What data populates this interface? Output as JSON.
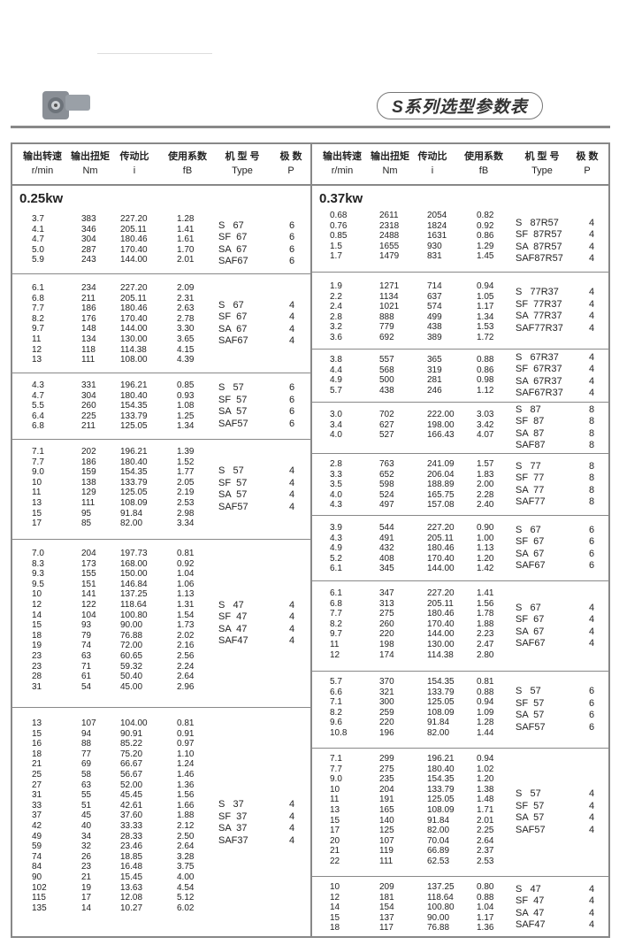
{
  "header": {
    "title": "S系列选型参数表",
    "logo_icon": "gear-reducer-image"
  },
  "columns": [
    {
      "zh": "输出转速",
      "en": "r/min"
    },
    {
      "zh": "输出扭矩",
      "en": "Nm"
    },
    {
      "zh": "传动比",
      "en": "i"
    },
    {
      "zh": "使用系数",
      "en": "fB"
    },
    {
      "zh": "机 型 号",
      "en": "Type"
    },
    {
      "zh": "极  数",
      "en": "P"
    }
  ],
  "left": {
    "power": "0.25kw",
    "groups": [
      {
        "rows": [
          [
            "3.7",
            "383",
            "227.20",
            "1.28"
          ],
          [
            "4.1",
            "346",
            "205.11",
            "1.41"
          ],
          [
            "4.7",
            "304",
            "180.46",
            "1.61"
          ],
          [
            "5.0",
            "287",
            "170.40",
            "1.70"
          ],
          [
            "5.9",
            "243",
            "144.00",
            "2.01"
          ]
        ],
        "types": [
          [
            "S   67",
            "6"
          ],
          [
            "SF  67",
            "6"
          ],
          [
            "SA  67",
            "6"
          ],
          [
            "SAF67",
            "6"
          ]
        ]
      },
      {
        "rows": [
          [
            "6.1",
            "234",
            "227.20",
            "2.09"
          ],
          [
            "6.8",
            "211",
            "205.11",
            "2.31"
          ],
          [
            "7.7",
            "186",
            "180.46",
            "2.63"
          ],
          [
            "8.2",
            "176",
            "170.40",
            "2.78"
          ],
          [
            "9.7",
            "148",
            "144.00",
            "3.30"
          ],
          [
            "11",
            "134",
            "130.00",
            "3.65"
          ],
          [
            "12",
            "118",
            "114.38",
            "4.15"
          ],
          [
            "13",
            "111",
            "108.00",
            "4.39"
          ]
        ],
        "types": [
          [
            "S   67",
            "4"
          ],
          [
            "SF  67",
            "4"
          ],
          [
            "SA  67",
            "4"
          ],
          [
            "SAF67",
            "4"
          ]
        ]
      },
      {
        "rows": [
          [
            "4.3",
            "331",
            "196.21",
            "0.85"
          ],
          [
            "4.7",
            "304",
            "180.40",
            "0.93"
          ],
          [
            "5.5",
            "260",
            "154.35",
            "1.08"
          ],
          [
            "6.4",
            "225",
            "133.79",
            "1.25"
          ],
          [
            "6.8",
            "211",
            "125.05",
            "1.34"
          ]
        ],
        "types": [
          [
            "S   57",
            "6"
          ],
          [
            "SF  57",
            "6"
          ],
          [
            "SA  57",
            "6"
          ],
          [
            "SAF57",
            "6"
          ]
        ]
      },
      {
        "rows": [
          [
            "7.1",
            "202",
            "196.21",
            "1.39"
          ],
          [
            "7.7",
            "186",
            "180.40",
            "1.52"
          ],
          [
            "9.0",
            "159",
            "154.35",
            "1.77"
          ],
          [
            "10",
            "138",
            "133.79",
            "2.05"
          ],
          [
            "11",
            "129",
            "125.05",
            "2.19"
          ],
          [
            "13",
            "111",
            "108.09",
            "2.53"
          ],
          [
            "15",
            "95",
            "91.84",
            "2.98"
          ],
          [
            "17",
            "85",
            "82.00",
            "3.34"
          ]
        ],
        "types": [
          [
            "S   57",
            "4"
          ],
          [
            "SF  57",
            "4"
          ],
          [
            "SA  57",
            "4"
          ],
          [
            "SAF57",
            "4"
          ]
        ]
      },
      {
        "rows": [
          [
            "7.0",
            "204",
            "197.73",
            "0.81"
          ],
          [
            "8.3",
            "173",
            "168.00",
            "0.92"
          ],
          [
            "9.3",
            "155",
            "150.00",
            "1.04"
          ],
          [
            "9.5",
            "151",
            "146.84",
            "1.06"
          ],
          [
            "10",
            "141",
            "137.25",
            "1.13"
          ],
          [
            "12",
            "122",
            "118.64",
            "1.31"
          ],
          [
            "14",
            "104",
            "100.80",
            "1.54"
          ],
          [
            "15",
            "93",
            "90.00",
            "1.73"
          ],
          [
            "18",
            "79",
            "76.88",
            "2.02"
          ],
          [
            "19",
            "74",
            "72.00",
            "2.16"
          ],
          [
            "23",
            "63",
            "60.65",
            "2.56"
          ],
          [
            "23",
            "71",
            "59.32",
            "2.24"
          ],
          [
            "28",
            "61",
            "50.40",
            "2.64"
          ],
          [
            "31",
            "54",
            "45.00",
            "2.96"
          ]
        ],
        "types": [
          [
            "S   47",
            "4"
          ],
          [
            "SF  47",
            "4"
          ],
          [
            "SA  47",
            "4"
          ],
          [
            "SAF47",
            "4"
          ]
        ]
      },
      {
        "rows": [
          [
            "13",
            "107",
            "104.00",
            "0.81"
          ],
          [
            "15",
            "94",
            "90.91",
            "0.91"
          ],
          [
            "16",
            "88",
            "85.22",
            "0.97"
          ],
          [
            "18",
            "77",
            "75.20",
            "1.10"
          ],
          [
            "21",
            "69",
            "66.67",
            "1.24"
          ],
          [
            "25",
            "58",
            "56.67",
            "1.46"
          ],
          [
            "27",
            "63",
            "52.00",
            "1.36"
          ],
          [
            "31",
            "55",
            "45.45",
            "1.56"
          ],
          [
            "33",
            "51",
            "42.61",
            "1.66"
          ],
          [
            "37",
            "45",
            "37.60",
            "1.88"
          ],
          [
            "42",
            "40",
            "33.33",
            "2.12"
          ],
          [
            "49",
            "34",
            "28.33",
            "2.50"
          ],
          [
            "59",
            "32",
            "23.46",
            "2.64"
          ],
          [
            "74",
            "26",
            "18.85",
            "3.28"
          ],
          [
            "84",
            "23",
            "16.48",
            "3.75"
          ],
          [
            "90",
            "21",
            "15.45",
            "4.00"
          ],
          [
            "102",
            "19",
            "13.63",
            "4.54"
          ],
          [
            "115",
            "17",
            "12.08",
            "5.12"
          ],
          [
            "135",
            "14",
            "10.27",
            "6.02"
          ]
        ],
        "types": [
          [
            "S   37",
            "4"
          ],
          [
            "SF  37",
            "4"
          ],
          [
            "SA  37",
            "4"
          ],
          [
            "SAF37",
            "4"
          ]
        ]
      }
    ]
  },
  "right": {
    "power": "0.37kw",
    "groups": [
      {
        "rows": [
          [
            "0.68",
            "2611",
            "2054",
            "0.82"
          ],
          [
            "0.76",
            "2318",
            "1824",
            "0.92"
          ],
          [
            "0.85",
            "2488",
            "1631",
            "0.86"
          ],
          [
            "1.5",
            "1655",
            "930",
            "1.29"
          ],
          [
            "1.7",
            "1479",
            "831",
            "1.45"
          ]
        ],
        "types": [
          [
            "S   87R57",
            "4"
          ],
          [
            "SF  87R57",
            "4"
          ],
          [
            "SA  87R57",
            "4"
          ],
          [
            "SAF87R57",
            "4"
          ]
        ]
      },
      {
        "rows": [
          [
            "1.9",
            "1271",
            "714",
            "0.94"
          ],
          [
            "2.2",
            "1134",
            "637",
            "1.05"
          ],
          [
            "2.4",
            "1021",
            "574",
            "1.17"
          ],
          [
            "2.8",
            "888",
            "499",
            "1.34"
          ],
          [
            "3.2",
            "779",
            "438",
            "1.53"
          ],
          [
            "3.6",
            "692",
            "389",
            "1.72"
          ]
        ],
        "types": [
          [
            "S   77R37",
            "4"
          ],
          [
            "SF  77R37",
            "4"
          ],
          [
            "SA  77R37",
            "4"
          ],
          [
            "SAF77R37",
            "4"
          ]
        ]
      },
      {
        "rows": [
          [
            "3.8",
            "557",
            "365",
            "0.88"
          ],
          [
            "4.4",
            "568",
            "319",
            "0.86"
          ],
          [
            "4.9",
            "500",
            "281",
            "0.98"
          ],
          [
            "5.7",
            "438",
            "246",
            "1.12"
          ]
        ],
        "types": [
          [
            "S   67R37",
            "4"
          ],
          [
            "SF  67R37",
            "4"
          ],
          [
            "SA  67R37",
            "4"
          ],
          [
            "SAF67R37",
            "4"
          ]
        ]
      },
      {
        "rows": [
          [
            "3.0",
            "702",
            "222.00",
            "3.03"
          ],
          [
            "3.4",
            "627",
            "198.00",
            "3.42"
          ],
          [
            "4.0",
            "527",
            "166.43",
            "4.07"
          ]
        ],
        "types": [
          [
            "S   87",
            "8"
          ],
          [
            "SF  87",
            "8"
          ],
          [
            "SA  87",
            "8"
          ],
          [
            "SAF87",
            "8"
          ]
        ]
      },
      {
        "rows": [
          [
            "2.8",
            "763",
            "241.09",
            "1.57"
          ],
          [
            "3.3",
            "652",
            "206.04",
            "1.83"
          ],
          [
            "3.5",
            "598",
            "188.89",
            "2.00"
          ],
          [
            "4.0",
            "524",
            "165.75",
            "2.28"
          ],
          [
            "4.3",
            "497",
            "157.08",
            "2.40"
          ]
        ],
        "types": [
          [
            "S   77",
            "8"
          ],
          [
            "SF  77",
            "8"
          ],
          [
            "SA  77",
            "8"
          ],
          [
            "SAF77",
            "8"
          ]
        ]
      },
      {
        "rows": [
          [
            "3.9",
            "544",
            "227.20",
            "0.90"
          ],
          [
            "4.3",
            "491",
            "205.11",
            "1.00"
          ],
          [
            "4.9",
            "432",
            "180.46",
            "1.13"
          ],
          [
            "5.2",
            "408",
            "170.40",
            "1.20"
          ],
          [
            "6.1",
            "345",
            "144.00",
            "1.42"
          ]
        ],
        "types": [
          [
            "S   67",
            "6"
          ],
          [
            "SF  67",
            "6"
          ],
          [
            "SA  67",
            "6"
          ],
          [
            "SAF67",
            "6"
          ]
        ]
      },
      {
        "rows": [
          [
            "6.1",
            "347",
            "227.20",
            "1.41"
          ],
          [
            "6.8",
            "313",
            "205.11",
            "1.56"
          ],
          [
            "7.7",
            "275",
            "180.46",
            "1.78"
          ],
          [
            "8.2",
            "260",
            "170.40",
            "1.88"
          ],
          [
            "9.7",
            "220",
            "144.00",
            "2.23"
          ],
          [
            "11",
            "198",
            "130.00",
            "2.47"
          ],
          [
            "12",
            "174",
            "114.38",
            "2.80"
          ]
        ],
        "types": [
          [
            "S   67",
            "4"
          ],
          [
            "SF  67",
            "4"
          ],
          [
            "SA  67",
            "4"
          ],
          [
            "SAF67",
            "4"
          ]
        ]
      },
      {
        "rows": [
          [
            "5.7",
            "370",
            "154.35",
            "0.81"
          ],
          [
            "6.6",
            "321",
            "133.79",
            "0.88"
          ],
          [
            "7.1",
            "300",
            "125.05",
            "0.94"
          ],
          [
            "8.2",
            "259",
            "108.09",
            "1.09"
          ],
          [
            "9.6",
            "220",
            "91.84",
            "1.28"
          ],
          [
            "10.8",
            "196",
            "82.00",
            "1.44"
          ]
        ],
        "types": [
          [
            "S   57",
            "6"
          ],
          [
            "SF  57",
            "6"
          ],
          [
            "SA  57",
            "6"
          ],
          [
            "SAF57",
            "6"
          ]
        ]
      },
      {
        "rows": [
          [
            "7.1",
            "299",
            "196.21",
            "0.94"
          ],
          [
            "7.7",
            "275",
            "180.40",
            "1.02"
          ],
          [
            "9.0",
            "235",
            "154.35",
            "1.20"
          ],
          [
            "10",
            "204",
            "133.79",
            "1.38"
          ],
          [
            "11",
            "191",
            "125.05",
            "1.48"
          ],
          [
            "13",
            "165",
            "108.09",
            "1.71"
          ],
          [
            "15",
            "140",
            "91.84",
            "2.01"
          ],
          [
            "17",
            "125",
            "82.00",
            "2.25"
          ],
          [
            "20",
            "107",
            "70.04",
            "2.64"
          ],
          [
            "21",
            "119",
            "66.89",
            "2.37"
          ],
          [
            "22",
            "111",
            "62.53",
            "2.53"
          ]
        ],
        "types": [
          [
            "S   57",
            "4"
          ],
          [
            "SF  57",
            "4"
          ],
          [
            "SA  57",
            "4"
          ],
          [
            "SAF57",
            "4"
          ]
        ]
      },
      {
        "rows": [
          [
            "10",
            "209",
            "137.25",
            "0.80"
          ],
          [
            "12",
            "181",
            "118.64",
            "0.88"
          ],
          [
            "14",
            "154",
            "100.80",
            "1.04"
          ],
          [
            "15",
            "137",
            "90.00",
            "1.17"
          ],
          [
            "18",
            "117",
            "76.88",
            "1.36"
          ]
        ],
        "types": [
          [
            "S   47",
            "4"
          ],
          [
            "SF  47",
            "4"
          ],
          [
            "SA  47",
            "4"
          ],
          [
            "SAF47",
            "4"
          ]
        ]
      }
    ]
  }
}
